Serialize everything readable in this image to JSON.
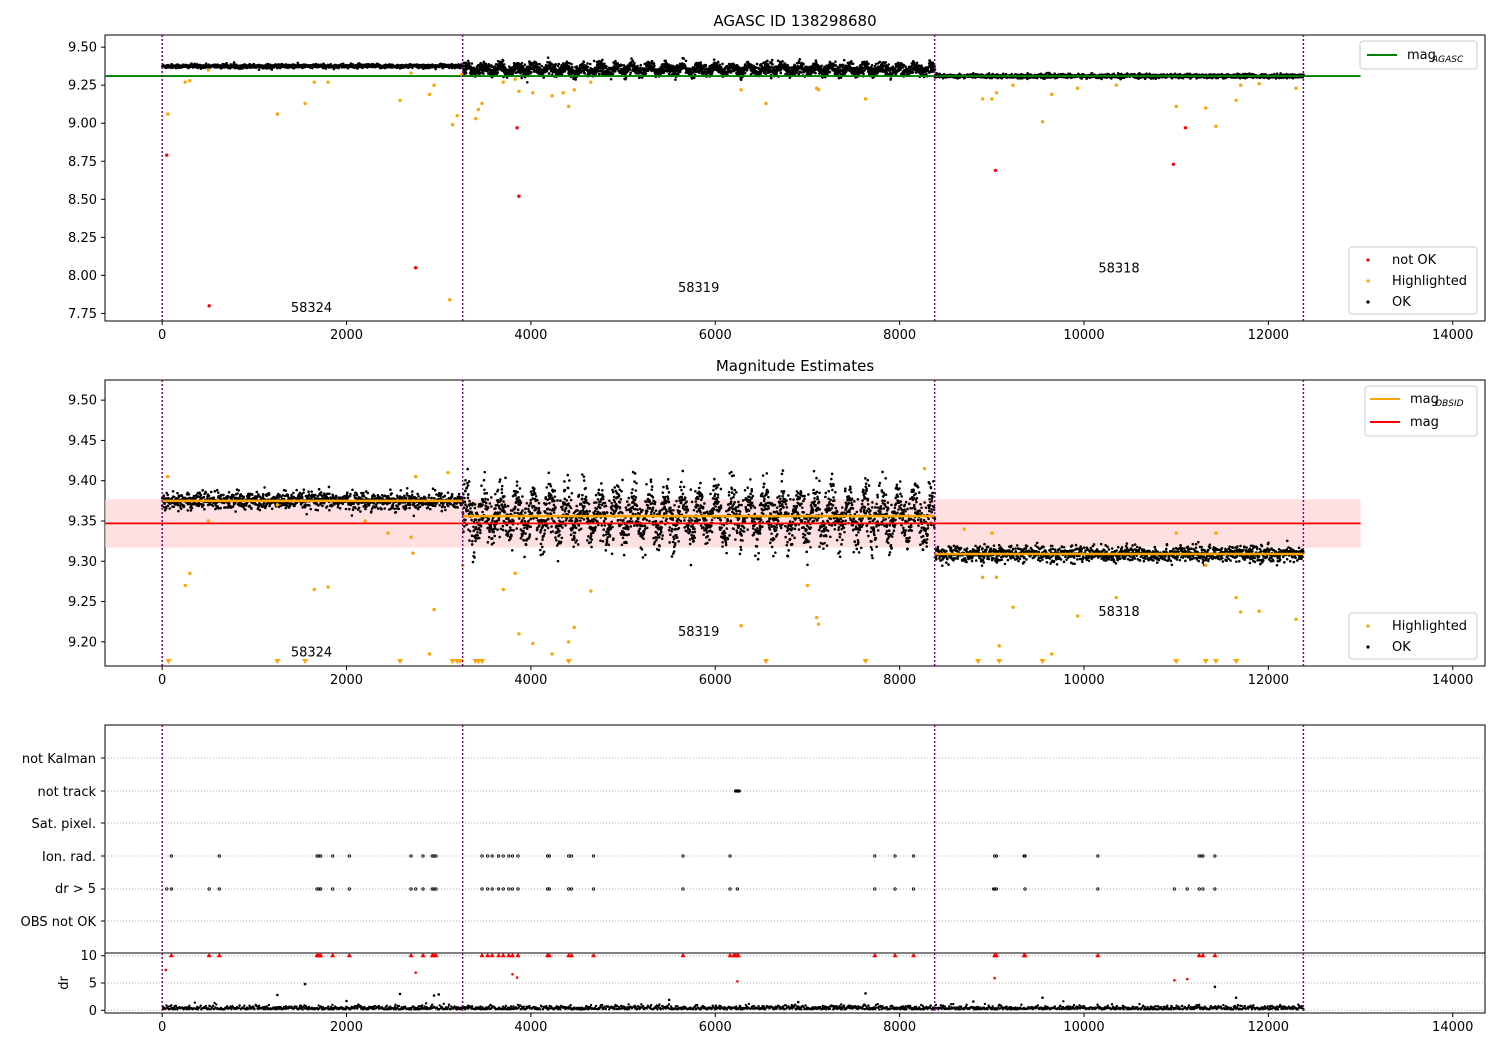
{
  "figure": {
    "obsid_boundaries": [
      0,
      3260,
      8380,
      12380
    ]
  },
  "chart_data": [
    {
      "type": "scatter",
      "title": "AGASC ID 138298680",
      "xlim": [
        -620,
        14350
      ],
      "ylim": [
        7.7,
        9.58
      ],
      "xticks": [
        0,
        2000,
        4000,
        6000,
        8000,
        10000,
        12000,
        14000
      ],
      "yticks": [
        7.75,
        8.0,
        8.25,
        8.5,
        8.75,
        9.0,
        9.25,
        9.5
      ],
      "ytick_labels": [
        "7.75",
        "8.00",
        "8.25",
        "8.50",
        "8.75",
        "9.00",
        "9.25",
        "9.50"
      ],
      "hline": {
        "name": "mag_AGASC",
        "y": 9.31,
        "x": [
          -620,
          13000
        ],
        "color": "#008000"
      },
      "segments": [
        {
          "x": [
            0,
            3260
          ],
          "level": 9.375,
          "spread": 0.012
        },
        {
          "x": [
            3260,
            8380
          ],
          "level": 9.355,
          "spread": 0.035,
          "wavy": true
        },
        {
          "x": [
            8380,
            12380
          ],
          "level": 9.31,
          "spread": 0.012
        }
      ],
      "series": [
        {
          "name": "not OK",
          "color": "#ff0000",
          "points": [
            [
              50,
              8.79
            ],
            [
              510,
              7.8
            ],
            [
              2750,
              8.05
            ],
            [
              3850,
              8.97
            ],
            [
              3870,
              8.52
            ],
            [
              9040,
              8.69
            ],
            [
              10970,
              8.73
            ],
            [
              11100,
              8.97
            ]
          ]
        },
        {
          "name": "Highlighted",
          "color": "#ffa500",
          "points": [
            [
              60,
              9.06
            ],
            [
              250,
              9.27
            ],
            [
              300,
              9.28
            ],
            [
              500,
              9.35
            ],
            [
              1250,
              9.06
            ],
            [
              1550,
              9.13
            ],
            [
              1650,
              9.27
            ],
            [
              1800,
              9.27
            ],
            [
              2580,
              9.15
            ],
            [
              2700,
              9.33
            ],
            [
              2900,
              9.19
            ],
            [
              2950,
              9.25
            ],
            [
              3120,
              7.84
            ],
            [
              3150,
              8.99
            ],
            [
              3200,
              9.05
            ],
            [
              3250,
              9.32
            ],
            [
              3400,
              9.03
            ],
            [
              3430,
              9.09
            ],
            [
              3470,
              9.13
            ],
            [
              3700,
              9.27
            ],
            [
              3830,
              9.29
            ],
            [
              3870,
              9.21
            ],
            [
              4020,
              9.2
            ],
            [
              4230,
              9.18
            ],
            [
              4350,
              9.2
            ],
            [
              4410,
              9.11
            ],
            [
              4470,
              9.22
            ],
            [
              4650,
              9.27
            ],
            [
              6280,
              9.22
            ],
            [
              6550,
              9.13
            ],
            [
              7100,
              9.23
            ],
            [
              7120,
              9.22
            ],
            [
              7630,
              9.16
            ],
            [
              8900,
              9.16
            ],
            [
              9000,
              9.16
            ],
            [
              9050,
              9.2
            ],
            [
              9230,
              9.25
            ],
            [
              9550,
              9.01
            ],
            [
              9650,
              9.19
            ],
            [
              9930,
              9.23
            ],
            [
              10350,
              9.25
            ],
            [
              11000,
              9.11
            ],
            [
              11320,
              9.1
            ],
            [
              11430,
              8.98
            ],
            [
              11650,
              9.15
            ],
            [
              11700,
              9.25
            ],
            [
              11900,
              9.26
            ],
            [
              12300,
              9.23
            ]
          ]
        },
        {
          "name": "OK",
          "color": "#000000"
        }
      ],
      "legend_lines": [
        {
          "name": "mag",
          "sub": "AGASC",
          "color": "#008000"
        }
      ],
      "legend_points": [
        {
          "name": "not OK",
          "color": "#ff0000"
        },
        {
          "name": "Highlighted",
          "color": "#ffa500"
        },
        {
          "name": "OK",
          "color": "#000000"
        }
      ],
      "annotations": [
        {
          "text": "58324",
          "x": 1620,
          "y": 7.76
        },
        {
          "text": "58319",
          "x": 5820,
          "y": 7.89
        },
        {
          "text": "58318",
          "x": 10380,
          "y": 8.02
        }
      ]
    },
    {
      "type": "scatter",
      "title": "Magnitude Estimates",
      "xlim": [
        -620,
        14350
      ],
      "ylim": [
        9.17,
        9.525
      ],
      "xticks": [
        0,
        2000,
        4000,
        6000,
        8000,
        10000,
        12000,
        14000
      ],
      "yticks": [
        9.2,
        9.25,
        9.3,
        9.35,
        9.4,
        9.45,
        9.5
      ],
      "ytick_labels": [
        "9.20",
        "9.25",
        "9.30",
        "9.35",
        "9.40",
        "9.45",
        "9.50"
      ],
      "band": {
        "y": [
          9.317,
          9.377
        ],
        "x": [
          -620,
          13000
        ],
        "color": "#ffcccc"
      },
      "hline": {
        "name": "mag",
        "y": 9.347,
        "x": [
          -620,
          13000
        ],
        "color": "#ff0000"
      },
      "obsid_mags": [
        {
          "x": [
            0,
            3260
          ],
          "y": 9.375
        },
        {
          "x": [
            3260,
            8380
          ],
          "y": 9.356
        },
        {
          "x": [
            8380,
            12380
          ],
          "y": 9.309
        }
      ],
      "segments": [
        {
          "x": [
            0,
            3260
          ],
          "level": 9.375,
          "spread": 0.01
        },
        {
          "x": [
            3260,
            8380
          ],
          "level": 9.356,
          "spread": 0.028,
          "wavy": true
        },
        {
          "x": [
            8380,
            12380
          ],
          "level": 9.309,
          "spread": 0.009
        }
      ],
      "series": [
        {
          "name": "Highlighted",
          "color": "#ffa500",
          "points": [
            [
              60,
              9.405
            ],
            [
              250,
              9.27
            ],
            [
              300,
              9.285
            ],
            [
              500,
              9.35
            ],
            [
              1250,
              9.37
            ],
            [
              1650,
              9.265
            ],
            [
              1800,
              9.268
            ],
            [
              2200,
              9.35
            ],
            [
              2450,
              9.335
            ],
            [
              2700,
              9.33
            ],
            [
              2720,
              9.31
            ],
            [
              2750,
              9.405
            ],
            [
              2900,
              9.185
            ],
            [
              2950,
              9.24
            ],
            [
              3100,
              9.41
            ],
            [
              3150,
              9.375
            ],
            [
              3260,
              9.295
            ],
            [
              3700,
              9.265
            ],
            [
              3830,
              9.285
            ],
            [
              3870,
              9.21
            ],
            [
              4020,
              9.198
            ],
            [
              4230,
              9.185
            ],
            [
              4410,
              9.2
            ],
            [
              4470,
              9.218
            ],
            [
              4650,
              9.263
            ],
            [
              6280,
              9.22
            ],
            [
              7000,
              9.27
            ],
            [
              7100,
              9.23
            ],
            [
              7120,
              9.222
            ],
            [
              8270,
              9.415
            ],
            [
              8700,
              9.34
            ],
            [
              8900,
              9.28
            ],
            [
              9000,
              9.335
            ],
            [
              9050,
              9.28
            ],
            [
              9080,
              9.195
            ],
            [
              9230,
              9.243
            ],
            [
              9650,
              9.185
            ],
            [
              9930,
              9.232
            ],
            [
              10350,
              9.255
            ],
            [
              11000,
              9.335
            ],
            [
              11320,
              9.295
            ],
            [
              11430,
              9.335
            ],
            [
              11650,
              9.255
            ],
            [
              11700,
              9.237
            ],
            [
              11900,
              9.238
            ],
            [
              12300,
              9.228
            ]
          ]
        },
        {
          "name": "Highlighted (below axis)",
          "color": "#ffa500",
          "marker": "down-triangle",
          "x": [
            70,
            1250,
            1550,
            2580,
            3150,
            3200,
            3230,
            3400,
            3430,
            3470,
            4410,
            6550,
            7630,
            8850,
            9080,
            9550,
            11000,
            11320,
            11430,
            11650
          ]
        },
        {
          "name": "OK",
          "color": "#000000"
        }
      ],
      "legend_lines": [
        {
          "name": "mag",
          "sub": "OBSID",
          "color": "#ffa500"
        },
        {
          "name": "mag",
          "sub": "",
          "color": "#ff0000"
        }
      ],
      "legend_points": [
        {
          "name": "Highlighted",
          "color": "#ffa500"
        },
        {
          "name": "OK",
          "color": "#000000"
        }
      ],
      "annotations": [
        {
          "text": "58324",
          "x": 1620,
          "y": 9.182
        },
        {
          "text": "58319",
          "x": 5820,
          "y": 9.207
        },
        {
          "text": "58318",
          "x": 10380,
          "y": 9.232
        }
      ]
    },
    {
      "type": "scatter",
      "title": "",
      "categories": [
        "OBS not OK",
        "dr > 5",
        "Ion. rad.",
        "Sat. pixel.",
        "not track",
        "not Kalman"
      ],
      "xlim": [
        -620,
        14350
      ],
      "flags": {
        "dr > 5": [
          50,
          100,
          510,
          620,
          1680,
          1700,
          1720,
          1850,
          2030,
          2700,
          2750,
          2830,
          2930,
          2950,
          2970,
          3470,
          3530,
          3580,
          3650,
          3700,
          3760,
          3800,
          3860,
          4180,
          4200,
          4410,
          4440,
          4680,
          5650,
          6160,
          6240,
          7730,
          7950,
          8150,
          9020,
          9030,
          9050,
          9360,
          10150,
          10980,
          11120,
          11250,
          11290,
          11420
        ],
        "Ion. rad.": [
          100,
          620,
          1680,
          1700,
          1720,
          1850,
          2030,
          2700,
          2830,
          2930,
          2950,
          2970,
          3470,
          3530,
          3580,
          3650,
          3700,
          3760,
          3800,
          3860,
          4180,
          4200,
          4410,
          4440,
          4680,
          5650,
          6160,
          7730,
          7950,
          8150,
          9030,
          9050,
          9350,
          9360,
          10150,
          11250,
          11270,
          11290,
          11420
        ],
        "not track": [
          6220,
          6230,
          6240,
          6250,
          6260
        ]
      },
      "xticks": [
        0,
        2000,
        4000,
        6000,
        8000,
        10000,
        12000,
        14000
      ]
    },
    {
      "type": "scatter",
      "title": "",
      "ylabel": "dr",
      "xlim": [
        -620,
        14350
      ],
      "ylim": [
        -0.5,
        10.5
      ],
      "yticks": [
        0,
        5,
        10
      ],
      "ytick_labels": [
        "0",
        "5",
        "10"
      ],
      "xticks": [
        0,
        2000,
        4000,
        6000,
        8000,
        10000,
        12000,
        14000
      ],
      "xtick_labels": [
        "0",
        "2000",
        "4000",
        "6000",
        "8000",
        "10000",
        "12000",
        "14000"
      ],
      "clipped_x": [
        100,
        510,
        620,
        1680,
        1700,
        1720,
        1850,
        2030,
        2700,
        2830,
        2930,
        2950,
        2970,
        3470,
        3530,
        3580,
        3650,
        3700,
        3760,
        3800,
        3860,
        4180,
        4200,
        4410,
        4440,
        4680,
        5650,
        6160,
        6200,
        6220,
        6240,
        6250,
        7730,
        7950,
        8150,
        9030,
        9050,
        9350,
        9360,
        10150,
        11250,
        11290,
        11420
      ],
      "outliers": [
        [
          40,
          7.4
        ],
        [
          1250,
          2.8
        ],
        [
          1550,
          4.8
        ],
        [
          2580,
          3.0
        ],
        [
          2750,
          6.9
        ],
        [
          2950,
          2.7
        ],
        [
          3000,
          2.9
        ],
        [
          3800,
          6.6
        ],
        [
          3850,
          6.0
        ],
        [
          6240,
          5.3
        ],
        [
          7630,
          3.1
        ],
        [
          9030,
          5.9
        ],
        [
          10980,
          5.5
        ],
        [
          11120,
          5.7
        ],
        [
          11420,
          4.3
        ],
        [
          9550,
          2.3
        ],
        [
          11650,
          2.3
        ],
        [
          2000,
          1.7
        ],
        [
          5500,
          1.9
        ],
        [
          6900,
          1.5
        ],
        [
          8800,
          1.6
        ]
      ]
    }
  ]
}
